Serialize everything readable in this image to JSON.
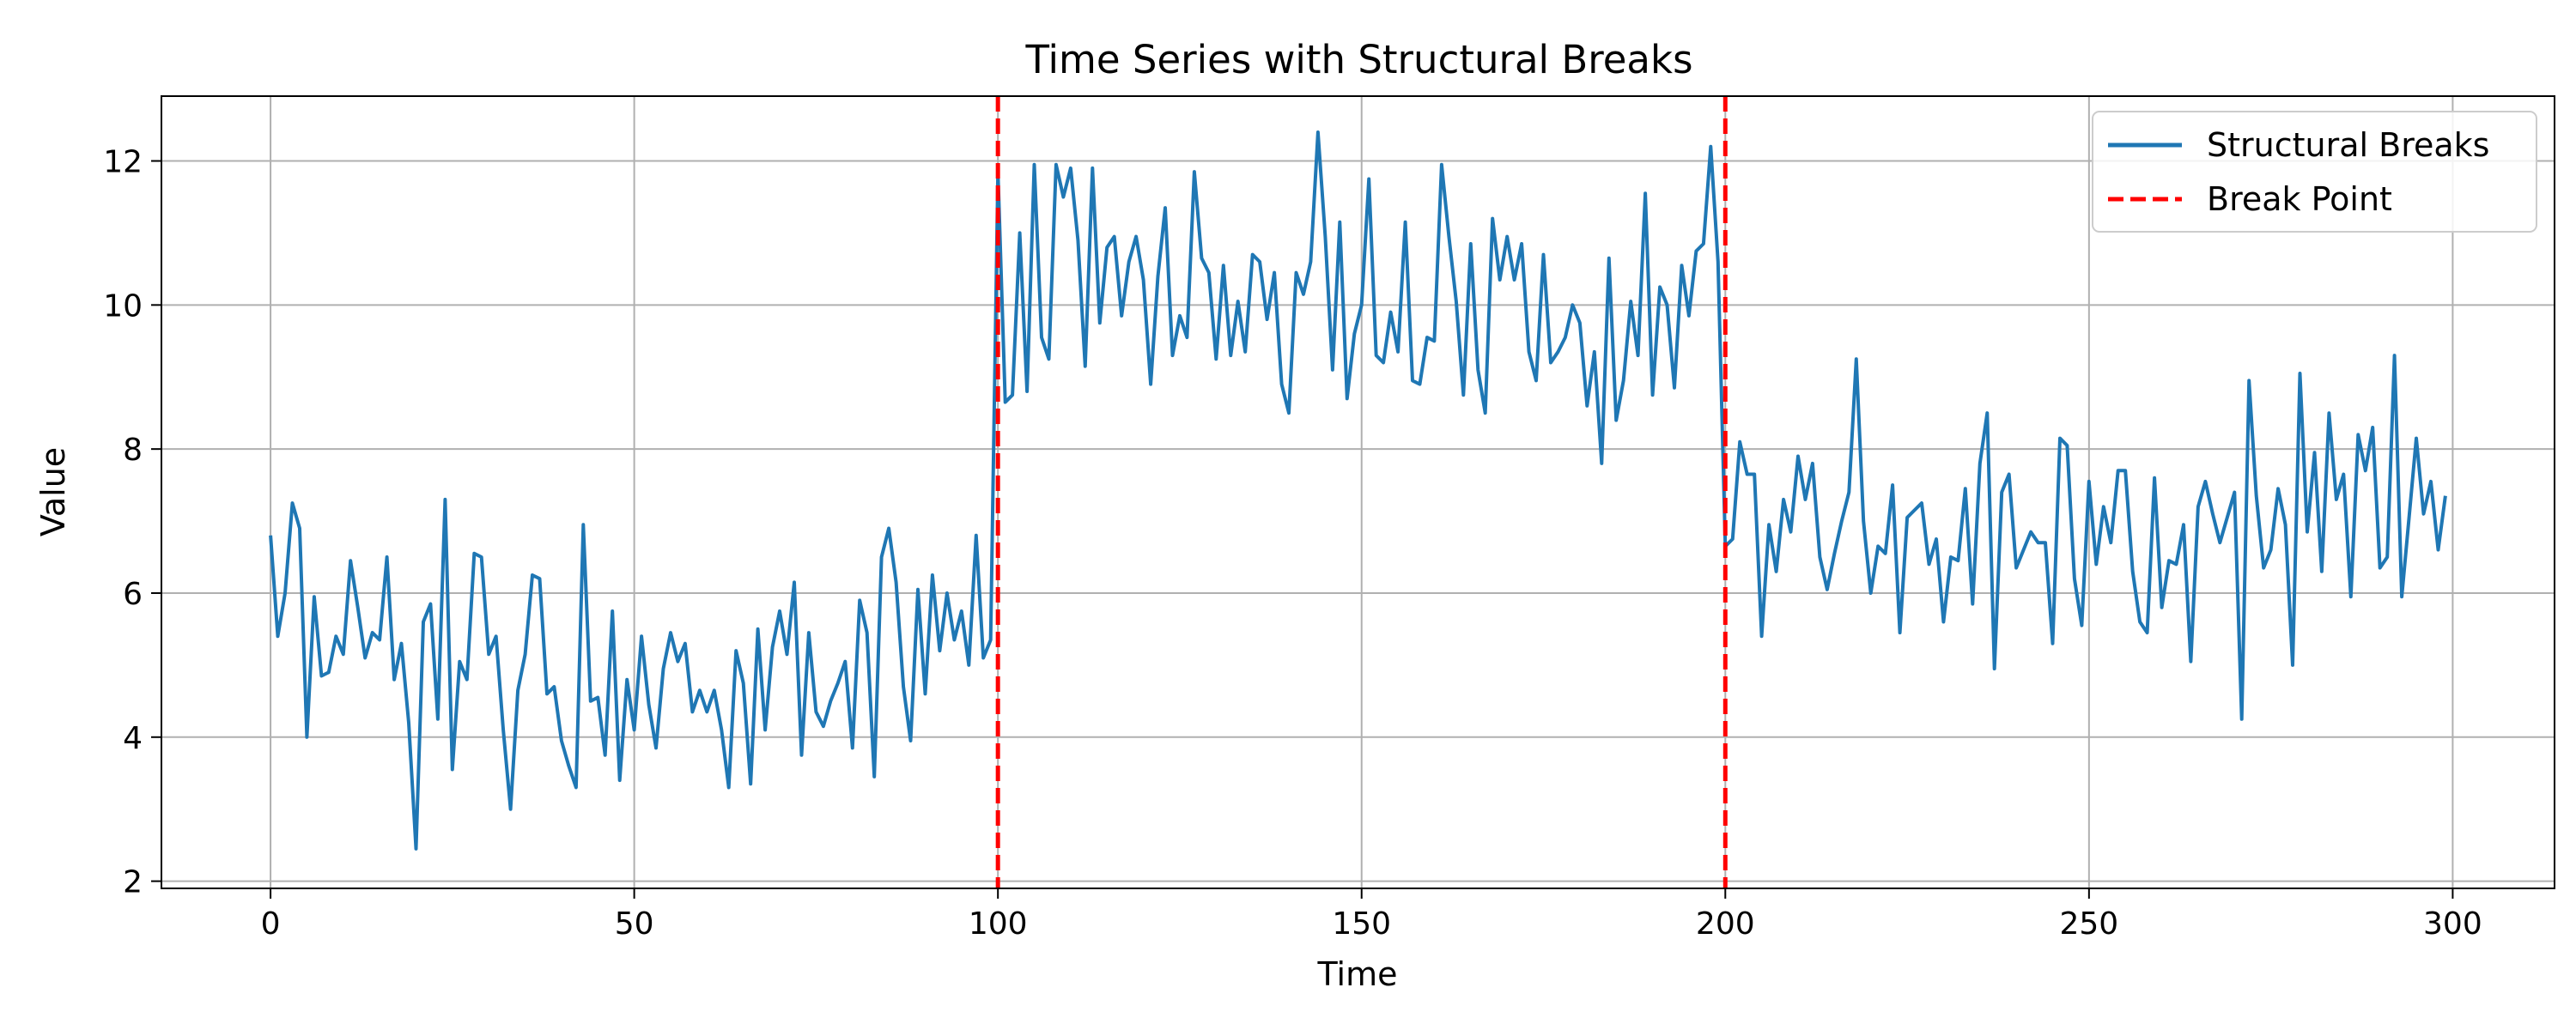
{
  "chart_data": {
    "type": "line",
    "title": "Time Series with Structural Breaks",
    "xlabel": "Time",
    "ylabel": "Value",
    "xlim": [
      -15,
      314
    ],
    "ylim": [
      1.9,
      12.9
    ],
    "xticks": [
      0,
      50,
      100,
      150,
      200,
      250,
      300
    ],
    "yticks": [
      2,
      4,
      6,
      8,
      10,
      12
    ],
    "xtick_labels": [
      "0",
      "50",
      "100",
      "150",
      "200",
      "250",
      "300"
    ],
    "ytick_labels": [
      "2",
      "4",
      "6",
      "8",
      "10",
      "12"
    ],
    "grid": true,
    "legend_position": "top-right",
    "series": [
      {
        "name": "Structural Breaks",
        "color": "#1f77b4",
        "style": "solid",
        "x_start": 0,
        "x_step": 1,
        "values": [
          6.8,
          5.4,
          6.0,
          7.25,
          6.9,
          4.0,
          5.95,
          4.85,
          4.9,
          5.4,
          5.15,
          6.45,
          5.8,
          5.1,
          5.45,
          5.35,
          6.5,
          4.8,
          5.3,
          4.2,
          2.45,
          5.6,
          5.85,
          4.25,
          7.3,
          3.55,
          5.05,
          4.8,
          6.55,
          6.5,
          5.15,
          5.4,
          4.1,
          3.0,
          4.65,
          5.15,
          6.25,
          6.2,
          4.6,
          4.7,
          3.95,
          3.6,
          3.3,
          6.95,
          4.5,
          4.55,
          3.75,
          5.75,
          3.4,
          4.8,
          4.1,
          5.4,
          4.45,
          3.85,
          4.95,
          5.45,
          5.05,
          5.3,
          4.35,
          4.65,
          4.35,
          4.65,
          4.1,
          3.3,
          5.2,
          4.75,
          3.35,
          5.5,
          4.1,
          5.25,
          5.75,
          5.15,
          6.15,
          3.75,
          5.45,
          4.35,
          4.15,
          4.5,
          4.75,
          5.05,
          3.85,
          5.9,
          5.45,
          3.45,
          6.5,
          6.9,
          6.15,
          4.7,
          3.95,
          6.05,
          4.6,
          6.25,
          5.2,
          6.0,
          5.35,
          5.75,
          5.0,
          6.8,
          5.1,
          5.35,
          11.85,
          8.65,
          8.75,
          11.0,
          8.8,
          11.95,
          9.55,
          9.25,
          11.95,
          11.5,
          11.9,
          10.9,
          9.15,
          11.9,
          9.75,
          10.8,
          10.95,
          9.85,
          10.6,
          10.95,
          10.35,
          8.9,
          10.4,
          11.35,
          9.3,
          9.85,
          9.55,
          11.85,
          10.65,
          10.45,
          9.25,
          10.55,
          9.3,
          10.05,
          9.35,
          10.7,
          10.6,
          9.8,
          10.45,
          8.9,
          8.5,
          10.45,
          10.15,
          10.6,
          12.4,
          10.95,
          9.1,
          11.15,
          8.7,
          9.6,
          10.0,
          11.75,
          9.3,
          9.2,
          9.9,
          9.35,
          11.15,
          8.95,
          8.9,
          9.55,
          9.5,
          11.95,
          10.95,
          10.05,
          8.75,
          10.85,
          9.1,
          8.5,
          11.2,
          10.35,
          10.95,
          10.35,
          10.85,
          9.35,
          8.95,
          10.7,
          9.2,
          9.35,
          9.55,
          10.0,
          9.75,
          8.6,
          9.35,
          7.8,
          10.65,
          8.4,
          8.95,
          10.05,
          9.3,
          11.55,
          8.75,
          10.25,
          10.0,
          8.85,
          10.55,
          9.85,
          10.75,
          10.85,
          12.2,
          10.6,
          6.65,
          6.75,
          8.1,
          7.65,
          7.65,
          5.4,
          6.95,
          6.3,
          7.3,
          6.85,
          7.9,
          7.3,
          7.8,
          6.5,
          6.05,
          6.55,
          7.0,
          7.4,
          9.25,
          7.0,
          6.0,
          6.65,
          6.55,
          7.5,
          5.45,
          7.05,
          7.15,
          7.25,
          6.4,
          6.75,
          5.6,
          6.5,
          6.45,
          7.45,
          5.85,
          7.8,
          8.5,
          4.95,
          7.4,
          7.65,
          6.35,
          6.6,
          6.85,
          6.7,
          6.7,
          5.3,
          8.15,
          8.05,
          6.2,
          5.55,
          7.55,
          6.4,
          7.2,
          6.7,
          7.7,
          7.7,
          6.3,
          5.6,
          5.45,
          7.6,
          5.8,
          6.45,
          6.4,
          6.95,
          5.05,
          7.2,
          7.55,
          7.1,
          6.7,
          7.05,
          7.4,
          4.25,
          8.95,
          7.35,
          6.35,
          6.6,
          7.45,
          6.95,
          5.0,
          9.05,
          6.85,
          7.95,
          6.3,
          8.5,
          7.3,
          7.65,
          5.95,
          8.2,
          7.7,
          8.3,
          6.35,
          6.5,
          9.3,
          5.95,
          7.05,
          8.15,
          7.1,
          7.55,
          6.6,
          7.35
        ]
      },
      {
        "name": "Break Point",
        "color": "#ff0000",
        "style": "dashed",
        "vlines": [
          100,
          200
        ]
      }
    ]
  }
}
